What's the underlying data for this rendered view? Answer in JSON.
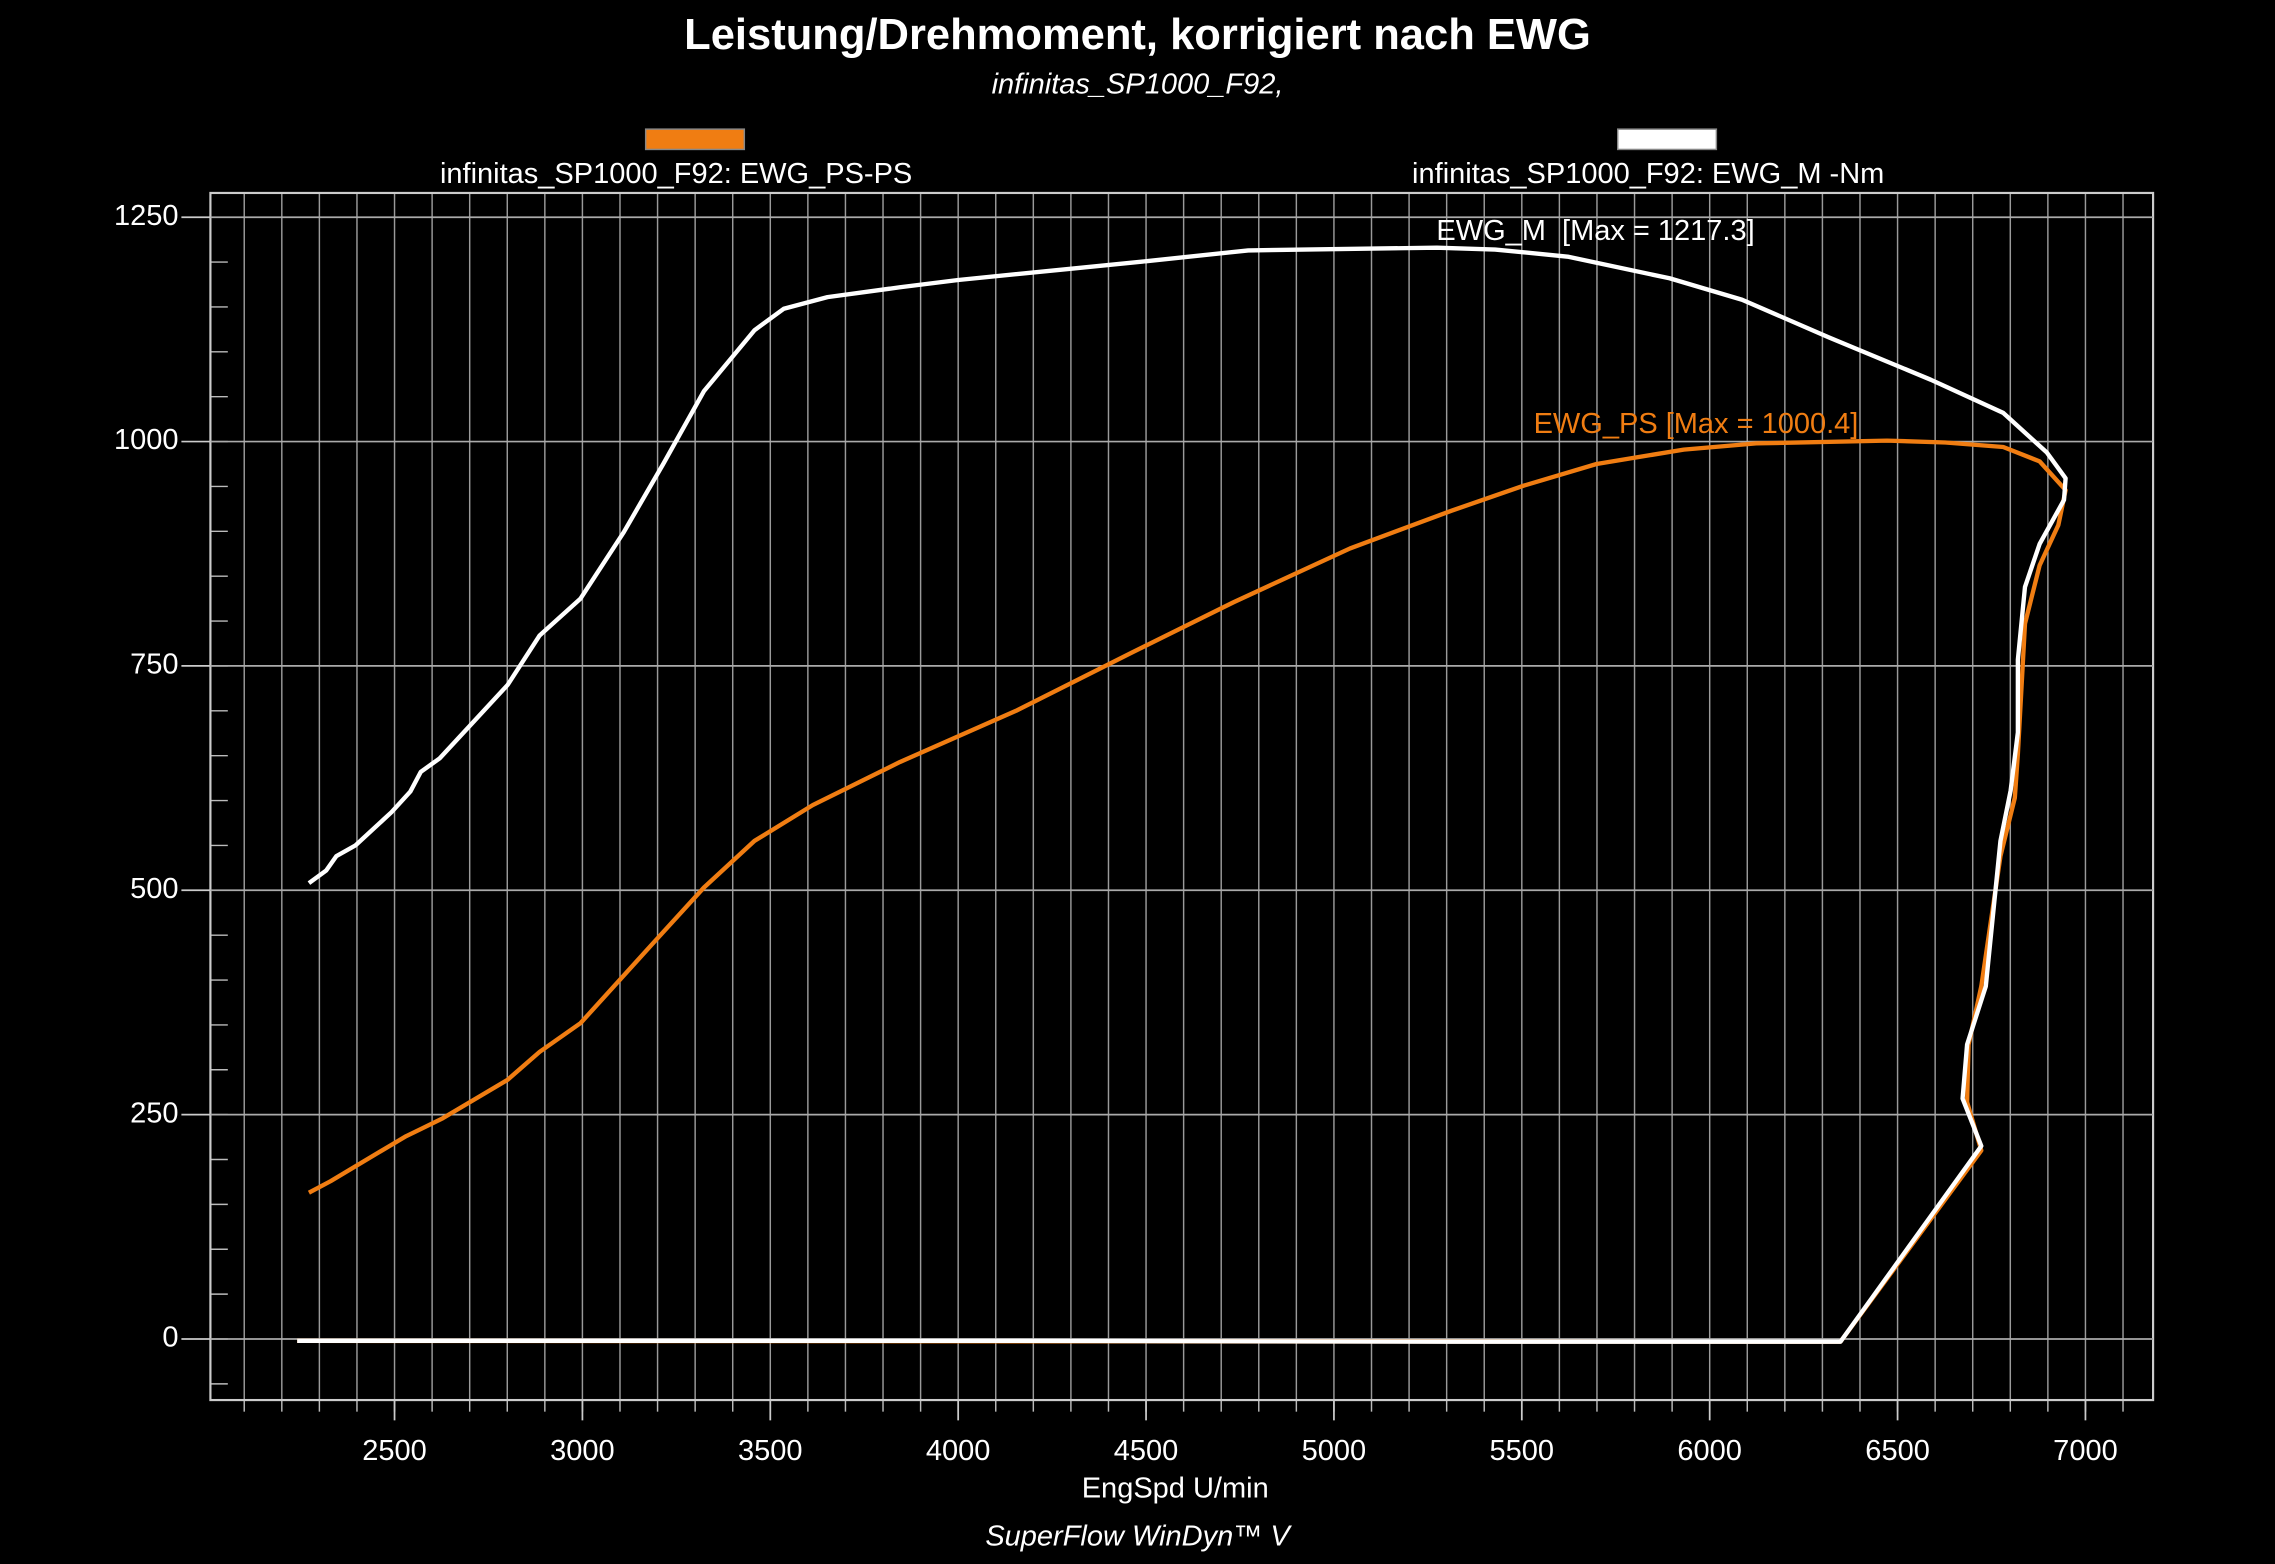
{
  "chart_data": {
    "type": "line",
    "title": "Leistung/Drehmoment, korrigiert nach EWG",
    "subtitle": "infinitas_SP1000_F92,",
    "x_label": "EngSpd U/min",
    "footer": "SuperFlow WinDyn™ V",
    "xlim": [
      2010,
      7180
    ],
    "ylim": [
      -68,
      1277
    ],
    "xticks": [
      2500,
      3000,
      3500,
      4000,
      4500,
      5000,
      5500,
      6000,
      6500,
      7000
    ],
    "yticks": [
      0,
      250,
      500,
      750,
      1000,
      1250
    ],
    "grid": true,
    "legend": "top",
    "annotations": [
      "EWG_M  [Max = 1217.3]",
      "EWG_PS [Max = 1000.4]"
    ],
    "series": [
      {
        "name": "infinitas_SP1000_F92: EWG_PS-PS",
        "color": "#f07d12",
        "x": [
          2272,
          2330,
          2454,
          2531,
          2570,
          2628,
          2801,
          2886,
          2995,
          3188,
          3323,
          3458,
          3613,
          3845,
          4154,
          4463,
          4733,
          5043,
          5313,
          5506,
          5699,
          5931,
          6124,
          6472,
          6627,
          6781,
          6878,
          6947,
          6928,
          6878,
          6839,
          6820,
          6812,
          6774,
          6723,
          6689,
          6685,
          6723,
          6348,
          2241
        ],
        "values": [
          163,
          176,
          207,
          226,
          234,
          246,
          289,
          320,
          352,
          441,
          503,
          555,
          595,
          643,
          700,
          765,
          821,
          881,
          923,
          951,
          975,
          991,
          998,
          1001,
          999,
          994,
          978,
          946,
          907,
          862,
          797,
          652,
          603,
          538,
          393,
          328,
          264,
          210,
          -3,
          -2
        ]
      },
      {
        "name": "infinitas_SP1000_F92: EWG_M -Nm",
        "color": "#ffffff",
        "x": [
          2272,
          2318,
          2345,
          2396,
          2492,
          2542,
          2570,
          2620,
          2713,
          2801,
          2886,
          2995,
          3110,
          3215,
          3323,
          3458,
          3536,
          3652,
          3845,
          4000,
          4308,
          4501,
          4772,
          5274,
          5429,
          5622,
          5893,
          6086,
          6318,
          6588,
          6781,
          6897,
          6947,
          6943,
          6878,
          6839,
          6820,
          6820,
          6801,
          6774,
          6735,
          6685,
          6673,
          6723,
          6348,
          5313,
          4154,
          3381,
          2241
        ],
        "values": [
          508,
          522,
          538,
          550,
          587,
          610,
          632,
          647,
          689,
          729,
          784,
          825,
          899,
          975,
          1056,
          1124,
          1148,
          1161,
          1172,
          1180,
          1193,
          1201,
          1213,
          1216,
          1214,
          1206,
          1182,
          1158,
          1116,
          1069,
          1032,
          988,
          959,
          935,
          886,
          838,
          757,
          676,
          611,
          555,
          393,
          328,
          268,
          215,
          -3,
          -3,
          -2,
          -2,
          -2
        ]
      }
    ]
  }
}
